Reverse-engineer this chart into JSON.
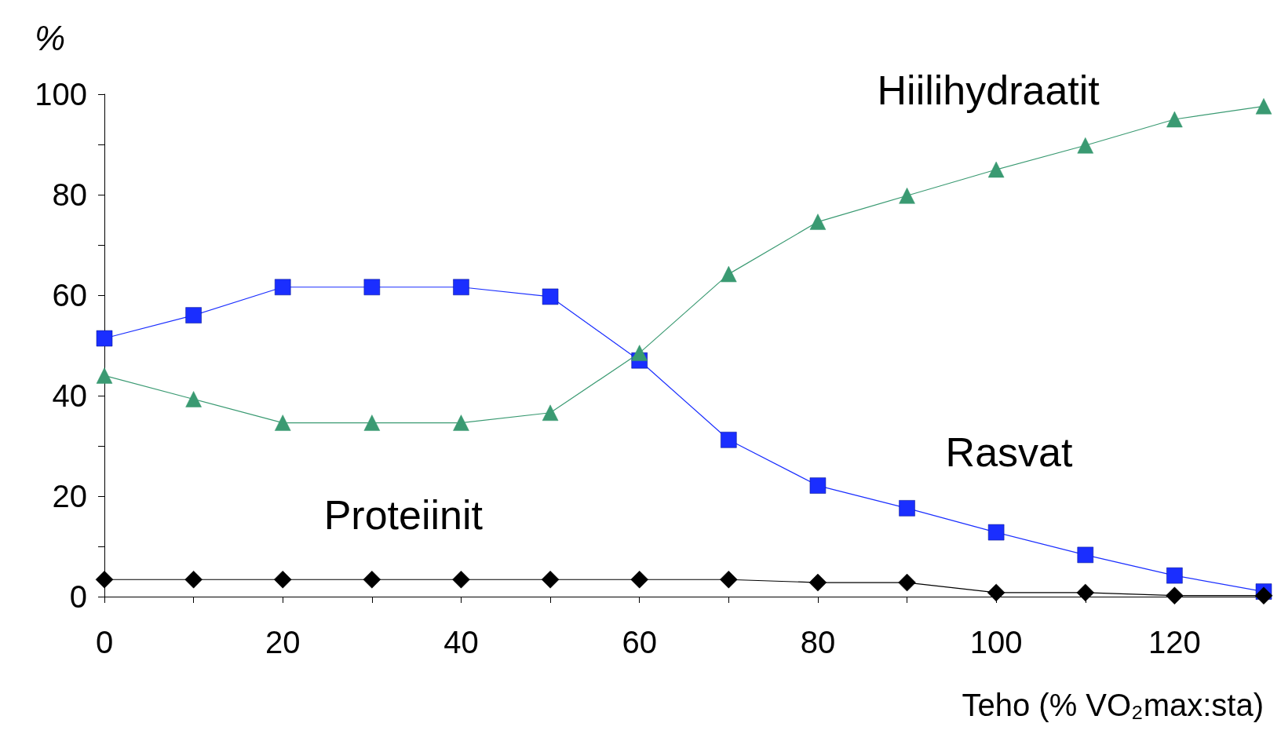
{
  "chart_data": {
    "type": "line",
    "xlabel": "Teho (% VO₂max:sta)",
    "ylabel": "%",
    "x": [
      0,
      10,
      20,
      30,
      40,
      50,
      60,
      70,
      80,
      90,
      100,
      110,
      120,
      130
    ],
    "series": [
      {
        "name": "Hiilihydraatit",
        "color": "#3a9a72",
        "marker": "triangle",
        "values": [
          44,
          39.3,
          34.6,
          34.6,
          34.6,
          36.6,
          48.5,
          64.2,
          74.6,
          79.8,
          85,
          89.8,
          95,
          97.6
        ]
      },
      {
        "name": "Rasvat",
        "color": "#1a2eff",
        "marker": "square",
        "values": [
          51.4,
          56,
          61.6,
          61.6,
          61.6,
          59.7,
          47,
          31.2,
          22.1,
          17.6,
          12.8,
          8.3,
          4.2,
          1
        ]
      },
      {
        "name": "Proteiinit",
        "color": "#000000",
        "marker": "diamond",
        "values": [
          3.4,
          3.4,
          3.4,
          3.4,
          3.4,
          3.4,
          3.4,
          3.4,
          2.8,
          2.8,
          0.8,
          0.8,
          0.2,
          0.2
        ]
      }
    ],
    "xlim": [
      0,
      130
    ],
    "xticks": [
      0,
      {
        "value": 10,
        "label": null
      },
      20,
      {
        "value": 30,
        "label": null
      },
      40,
      {
        "value": 50,
        "label": null
      },
      60,
      {
        "value": 70,
        "label": null
      },
      80,
      {
        "value": 90,
        "label": null
      },
      100,
      {
        "value": 110,
        "label": null
      },
      120,
      {
        "value": 130,
        "label": null
      }
    ],
    "ylim": [
      0,
      100
    ],
    "yticks": [
      0,
      {
        "value": 10,
        "label": null
      },
      20,
      {
        "value": 30,
        "label": null
      },
      40,
      {
        "value": 50,
        "label": null
      },
      60,
      {
        "value": 70,
        "label": null
      },
      80,
      {
        "value": 90,
        "label": null
      },
      100
    ],
    "line_style": "solid"
  }
}
